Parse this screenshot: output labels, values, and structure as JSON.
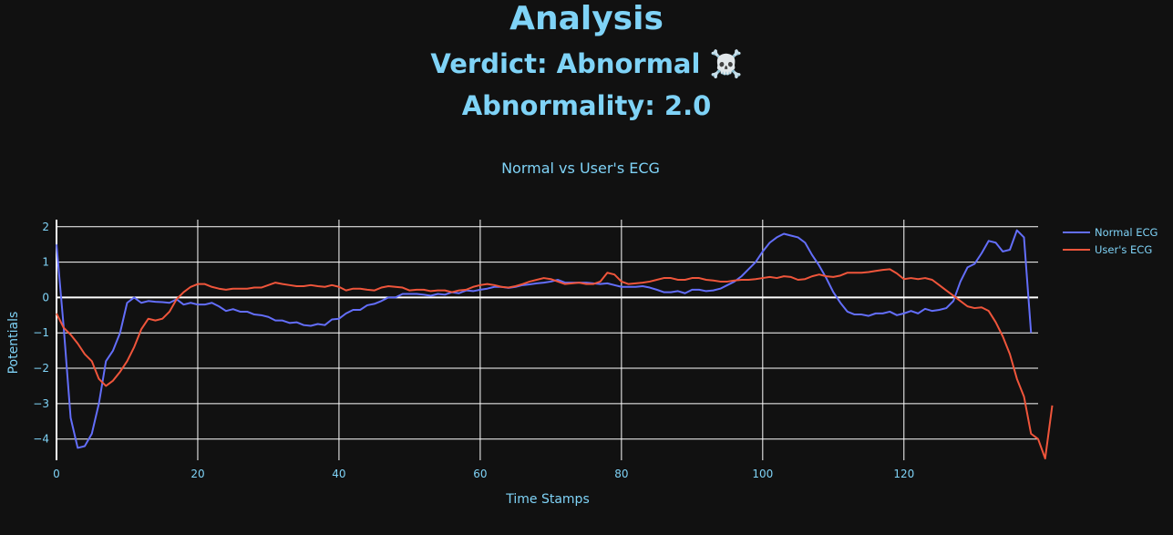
{
  "header": {
    "title": "Analysis",
    "verdict": "Verdict: Abnormal ☠️",
    "abnormality": "Abnormality: 2.0"
  },
  "colors": {
    "background": "#111111",
    "text": "#7fd3f7",
    "grid": "#ffffff",
    "normal_series": "#636efa",
    "user_series": "#ef553b"
  },
  "chart_data": {
    "type": "line",
    "title": "Normal vs User's ECG",
    "xlabel": "Time Stamps",
    "ylabel": "Potentials",
    "xlim": [
      0,
      139
    ],
    "ylim": [
      -4.6,
      2.2
    ],
    "xticks": [
      0,
      20,
      40,
      60,
      80,
      100,
      120
    ],
    "yticks": [
      2,
      1,
      0,
      -1,
      -2,
      -3,
      -4
    ],
    "ytick_labels": [
      "2",
      "1",
      "0",
      "−1",
      "−2",
      "−3",
      "−4"
    ],
    "grid": true,
    "legend": "top-right",
    "series": [
      {
        "name": "Normal ECG",
        "color": "#636efa",
        "values": [
          1.5,
          -0.8,
          -3.4,
          -4.25,
          -4.2,
          -3.85,
          -3.0,
          -1.8,
          -1.5,
          -1.0,
          -0.15,
          0.0,
          -0.15,
          -0.1,
          -0.12,
          -0.13,
          -0.15,
          -0.05,
          -0.2,
          -0.15,
          -0.2,
          -0.2,
          -0.15,
          -0.25,
          -0.38,
          -0.33,
          -0.4,
          -0.4,
          -0.48,
          -0.5,
          -0.55,
          -0.65,
          -0.65,
          -0.72,
          -0.7,
          -0.78,
          -0.8,
          -0.75,
          -0.78,
          -0.62,
          -0.6,
          -0.45,
          -0.35,
          -0.35,
          -0.22,
          -0.18,
          -0.1,
          0.0,
          0.0,
          0.1,
          0.1,
          0.1,
          0.08,
          0.05,
          0.1,
          0.08,
          0.15,
          0.12,
          0.2,
          0.18,
          0.22,
          0.25,
          0.3,
          0.3,
          0.27,
          0.3,
          0.35,
          0.37,
          0.4,
          0.42,
          0.45,
          0.5,
          0.42,
          0.42,
          0.42,
          0.42,
          0.4,
          0.38,
          0.4,
          0.35,
          0.3,
          0.3,
          0.3,
          0.32,
          0.28,
          0.22,
          0.15,
          0.15,
          0.18,
          0.12,
          0.22,
          0.22,
          0.18,
          0.2,
          0.25,
          0.35,
          0.45,
          0.6,
          0.8,
          1.0,
          1.3,
          1.55,
          1.7,
          1.8,
          1.75,
          1.7,
          1.55,
          1.2,
          0.9,
          0.55,
          0.15,
          -0.15,
          -0.4,
          -0.48,
          -0.48,
          -0.52,
          -0.45,
          -0.45,
          -0.4,
          -0.5,
          -0.45,
          -0.38,
          -0.45,
          -0.32,
          -0.38,
          -0.35,
          -0.3,
          -0.1,
          0.45,
          0.85,
          0.95,
          1.25,
          1.6,
          1.55,
          1.3,
          1.35,
          1.9,
          1.7,
          -1.0
        ]
      },
      {
        "name": "User's ECG",
        "color": "#ef553b",
        "values": [
          -0.45,
          -0.85,
          -1.05,
          -1.3,
          -1.6,
          -1.8,
          -2.3,
          -2.5,
          -2.35,
          -2.1,
          -1.8,
          -1.4,
          -0.9,
          -0.6,
          -0.65,
          -0.6,
          -0.4,
          -0.05,
          0.15,
          0.3,
          0.38,
          0.38,
          0.3,
          0.25,
          0.22,
          0.25,
          0.25,
          0.25,
          0.28,
          0.28,
          0.35,
          0.42,
          0.38,
          0.35,
          0.32,
          0.32,
          0.35,
          0.32,
          0.3,
          0.35,
          0.3,
          0.2,
          0.25,
          0.25,
          0.22,
          0.2,
          0.28,
          0.32,
          0.3,
          0.28,
          0.2,
          0.22,
          0.22,
          0.18,
          0.2,
          0.2,
          0.15,
          0.2,
          0.22,
          0.3,
          0.35,
          0.38,
          0.35,
          0.3,
          0.28,
          0.32,
          0.38,
          0.45,
          0.5,
          0.55,
          0.52,
          0.45,
          0.38,
          0.4,
          0.42,
          0.38,
          0.38,
          0.45,
          0.7,
          0.65,
          0.45,
          0.38,
          0.4,
          0.42,
          0.45,
          0.5,
          0.55,
          0.55,
          0.5,
          0.5,
          0.55,
          0.55,
          0.5,
          0.48,
          0.45,
          0.45,
          0.48,
          0.5,
          0.5,
          0.52,
          0.55,
          0.58,
          0.55,
          0.6,
          0.58,
          0.5,
          0.52,
          0.6,
          0.65,
          0.6,
          0.58,
          0.62,
          0.7,
          0.7,
          0.7,
          0.72,
          0.75,
          0.78,
          0.8,
          0.68,
          0.52,
          0.55,
          0.52,
          0.55,
          0.5,
          0.35,
          0.2,
          0.05,
          -0.1,
          -0.25,
          -0.3,
          -0.28,
          -0.38,
          -0.7,
          -1.1,
          -1.6,
          -2.3,
          -2.8,
          -3.85,
          -4.0,
          -4.55,
          -3.05
        ]
      }
    ]
  }
}
